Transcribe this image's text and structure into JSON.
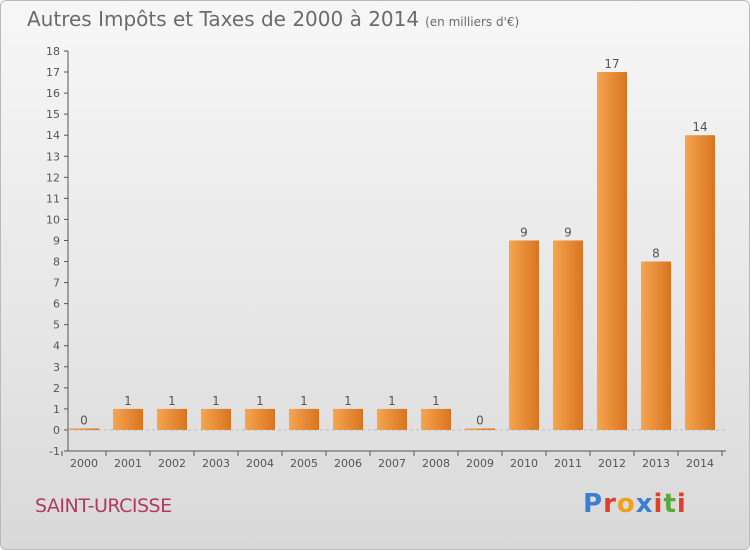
{
  "header": {
    "title": "Autres Impôts et Taxes de 2000 à 2014",
    "unit": "(en milliers d'€)"
  },
  "footer": {
    "place": "SAINT-URCISSE",
    "logo": "Proxiti",
    "logo_colors": [
      "#3a7fd0",
      "#e0402a",
      "#f0a020",
      "#3a7fd0",
      "#e0402a",
      "#5aa83a",
      "#e0402a"
    ]
  },
  "colors": {
    "bar_light": "#f5a552",
    "bar_dark": "#d9741f",
    "axis": "#555555",
    "grid_dash": "#bdbdbd"
  },
  "chart_data": {
    "type": "bar",
    "categories": [
      "2000",
      "2001",
      "2002",
      "2003",
      "2004",
      "2005",
      "2006",
      "2007",
      "2008",
      "2009",
      "2010",
      "2011",
      "2012",
      "2013",
      "2014"
    ],
    "values": [
      0,
      1,
      1,
      1,
      1,
      1,
      1,
      1,
      1,
      0,
      9,
      9,
      17,
      8,
      14
    ],
    "data_labels": [
      "0",
      "1",
      "1",
      "1",
      "1",
      "1",
      "1",
      "1",
      "1",
      "0",
      "9",
      "9",
      "17",
      "8",
      "14"
    ],
    "yticks": [
      -1,
      0,
      1,
      2,
      3,
      4,
      5,
      6,
      7,
      8,
      9,
      10,
      11,
      12,
      13,
      14,
      15,
      16,
      17,
      18
    ],
    "ylim": [
      -1,
      18
    ],
    "grid": false,
    "legend": "none"
  }
}
